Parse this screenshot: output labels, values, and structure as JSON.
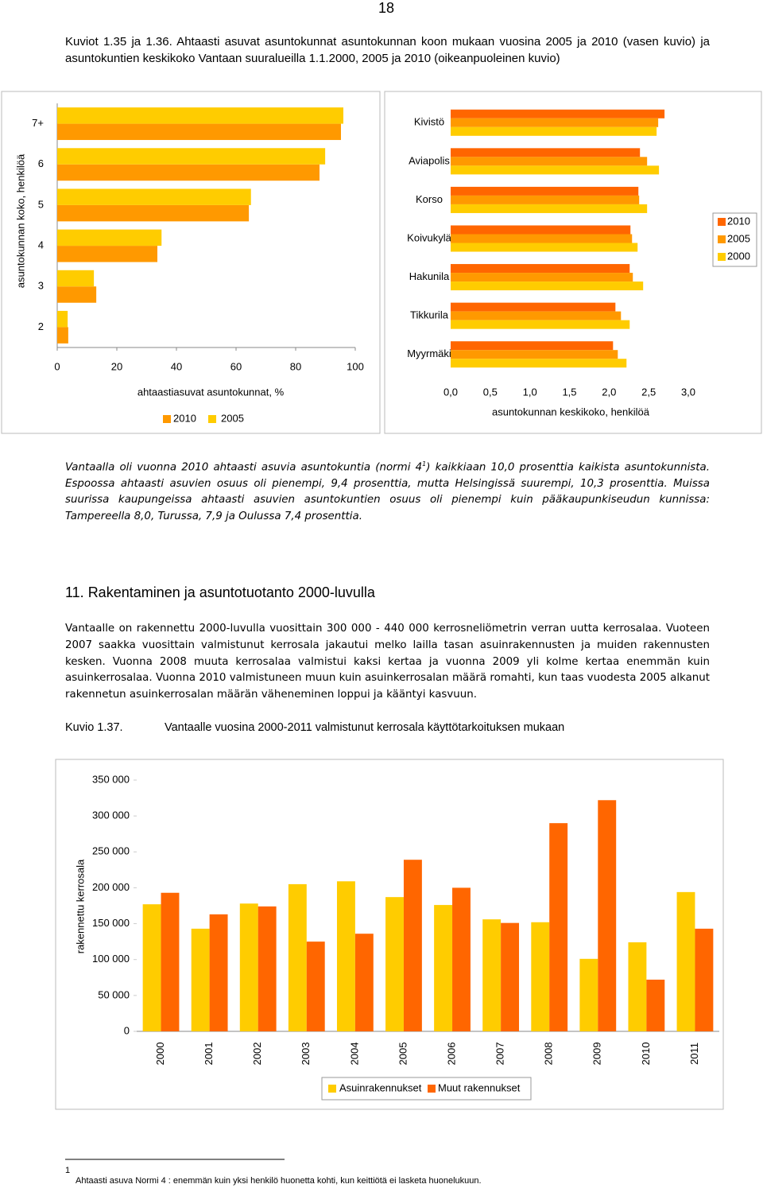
{
  "page_number": "18",
  "caption": "Kuviot 1.35 ja 1.36. Ahtaasti asuvat asuntokunnat asuntokunnan koon mukaan vuosina 2005 ja 2010 (vasen kuvio) ja asuntokuntien keskikoko Vantaan suuralueilla 1.1.2000, 2005 ja 2010 (oikeanpuoleinen kuvio)",
  "paragraph_1": {
    "before": "Vantaalla oli vuonna 2010 ahtaasti asuvia asuntokuntia (normi 4",
    "sup": "1",
    "after": ") kaikkiaan 10,0 prosenttia kaikista asuntokunnista. Espoossa ahtaasti asuvien osuus oli pienempi, 9,4 prosenttia, mutta Helsingissä suurempi, 10,3 prosenttia. Muissa suurissa kaupungeissa ahtaasti asuvien asuntokuntien osuus oli pienempi kuin pääkaupunkiseudun kunnissa: Tampereella 8,0, Turussa, 7,9 ja Oulussa 7,4 prosenttia."
  },
  "heading": "11. Rakentaminen ja asuntotuotanto 2000-luvulla",
  "paragraph_2": "Vantaalle on rakennettu 2000-luvulla vuosittain 300 000 - 440 000 kerrosneliömetrin verran uutta kerrosalaa. Vuoteen 2007 saakka vuosittain valmistunut kerrosala jakautui melko lailla tasan asuinrakennusten ja muiden rakennusten kesken. Vuonna 2008 muuta kerrosalaa valmistui kaksi kertaa ja vuonna 2009 yli kolme kertaa enemmän kuin asuinkerrosalaa. Vuonna 2010 valmistuneen muun kuin asuinkerrosalan määrä romahti, kun taas vuodesta 2005 alkanut rakennetun asuinkerrosalan määrän väheneminen loppui ja kääntyi kasvuun.",
  "figure_label": "Kuvio 1.37.",
  "figure_title": "Vantaalle vuosina 2000-2011 valmistunut kerrosala käyttötarkoituksen mukaan",
  "footnote": {
    "mark": "1",
    "text": "Ahtaasti asuva Normi 4 : enemmän kuin yksi henkilö huonetta kohti, kun keittiötä ei lasketa huonelukuun."
  },
  "chart_data": [
    {
      "type": "bar",
      "orientation": "horizontal",
      "categories": [
        "7+",
        "6",
        "5",
        "4",
        "3",
        "2"
      ],
      "series": [
        {
          "name": "2010",
          "color": "#FF9900",
          "values": [
            95.2,
            88,
            64.3,
            33.6,
            13.1,
            3.7
          ]
        },
        {
          "name": "2005",
          "color": "#FFCC00",
          "values": [
            96,
            89.9,
            65,
            35,
            12.3,
            3.5
          ]
        }
      ],
      "xlim": [
        0,
        100
      ],
      "xticks": [
        0,
        20,
        40,
        60,
        80,
        100
      ],
      "x_label": "ahtaastiasuvat asuntokunnat, %",
      "y_label": "asuntokunnan koko, henkilöä",
      "legend": "bottom"
    },
    {
      "type": "bar",
      "orientation": "horizontal",
      "categories": [
        "Kivistö",
        "Aviapolis",
        "Korso",
        "Koivukylä",
        "Hakunila",
        "Tikkurila",
        "Myyrmäki"
      ],
      "series": [
        {
          "name": "2010",
          "color": "#FF6600",
          "values": [
            2.7,
            2.39,
            2.37,
            2.27,
            2.26,
            2.08,
            2.05
          ]
        },
        {
          "name": "2005",
          "color": "#FF9900",
          "values": [
            2.62,
            2.48,
            2.38,
            2.29,
            2.3,
            2.15,
            2.11
          ]
        },
        {
          "name": "2000",
          "color": "#FFCC00",
          "values": [
            2.6,
            2.63,
            2.48,
            2.36,
            2.43,
            2.26,
            2.22
          ]
        }
      ],
      "xlim": [
        0,
        3
      ],
      "xticks": [
        {
          "value": 0,
          "label": "0,0"
        },
        {
          "value": 0.5,
          "label": "0,5"
        },
        {
          "value": 1,
          "label": "1,0"
        },
        {
          "value": 1.5,
          "label": "1,5"
        },
        {
          "value": 2,
          "label": "2,0"
        },
        {
          "value": 2.5,
          "label": "2,5"
        },
        {
          "value": 3,
          "label": "3,0"
        }
      ],
      "x_label": "asuntokunnan keskikoko, henkilöä",
      "legend": "right"
    },
    {
      "type": "bar",
      "orientation": "vertical",
      "categories": [
        "2000",
        "2001",
        "2002",
        "2003",
        "2004",
        "2005",
        "2006",
        "2007",
        "2008",
        "2009",
        "2010",
        "2011"
      ],
      "series": [
        {
          "name": "Asuinrakennukset",
          "color": "#FFCC00",
          "values": [
            177000,
            143000,
            178000,
            205000,
            209000,
            187000,
            176000,
            156000,
            152000,
            101000,
            124000,
            194000
          ]
        },
        {
          "name": "Muut rakennukset",
          "color": "#FF6600",
          "values": [
            193000,
            163000,
            174000,
            125000,
            136000,
            239000,
            200000,
            151000,
            290000,
            322000,
            72000,
            143000
          ]
        }
      ],
      "ylim": [
        0,
        350000
      ],
      "yticks": [
        0,
        {
          "value": 50000,
          "label": "50 000"
        },
        {
          "value": 100000,
          "label": "100 000"
        },
        {
          "value": 150000,
          "label": "150 000"
        },
        {
          "value": 200000,
          "label": "200 000"
        },
        {
          "value": 250000,
          "label": "250 000"
        },
        {
          "value": 300000,
          "label": "300 000"
        },
        {
          "value": 350000,
          "label": "350 000"
        }
      ],
      "y_label": "rakennettu kerrosala",
      "legend": "bottom"
    }
  ]
}
